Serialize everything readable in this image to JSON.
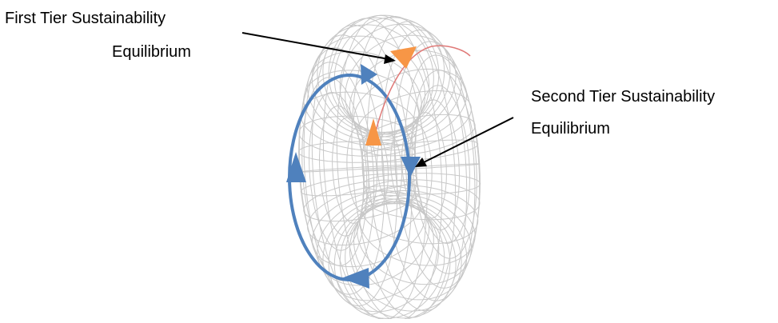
{
  "labels": {
    "first_tier": {
      "line1": "First Tier Sustainability",
      "line2": "Equilibrium"
    },
    "second_tier": {
      "line1": "Second Tier Sustainability",
      "line2": "Equilibrium"
    }
  },
  "colors": {
    "torus_mesh": "#c8c8c8",
    "first_tier_loop": "#e07a78",
    "first_tier_arrow": "#f79646",
    "second_tier_loop": "#4f81bd",
    "pointer": "#000000"
  },
  "icons": {
    "torus": "torus-wireframe-icon",
    "arrowheads": "triangle-arrow-icon"
  }
}
